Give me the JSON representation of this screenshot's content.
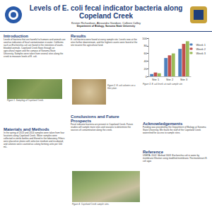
{
  "header": {
    "title": "Levels of E. coli fecal indicator bacteria along Copeland Creek",
    "authors": "Kirsten Richardson, Alexandra Vandiver, Colleen Colley",
    "affiliation": "Department of Biology, Sonoma State University"
  },
  "sections": [
    {
      "heading": "Introduction",
      "text": "Levels of bacteria that are harmful to humans and animals are used as indicators of fecal contamination in water. Coliforms such as Escherichia coli are found in the intestines of warm-blooded animals. Copeland Creek flows through an agricultural region and the campus of Sonoma State University. Samples were taken from several sites along the creek to measure levels of E. coli."
    },
    {
      "heading": "Results",
      "text": "E. coli bacteria were found at every sample site. Levels rose at the sites further downstream, and the highest counts were found at the site nearest the agricultural land."
    },
    {
      "heading": "Materials and Methods",
      "text": "In the spring of 2013 and 2014 samples were taken from four locations along Copeland Creek. Water samples were collected in sterile bottles and filtered in the laboratory. Filters were placed on plates with selective medium and incubated, and colonies were counted as colony forming units per 100 mL."
    },
    {
      "heading": "Conclusions and Future Prospects",
      "text": "Fecal indicator bacteria are present in Copeland Creek. Future studies will sample more sites and seasons to determine the sources of contamination along the creek."
    },
    {
      "heading": "Acknowledgements",
      "text": "Funding was provided by the Department of Biology at Sonoma State University. We thank the staff of the Copeland Creek watershed for access to sample sites."
    },
    {
      "heading": "Reference",
      "text": "USEPA. 2002. Method 1603: Escherichia coli in water by membrane filtration using modified membrane-Thermotolerant E. coli agar."
    }
  ],
  "figures": [
    "Figure 1. Sampling of Copeland Creek.",
    "Figure 2. E. coli colonies on a filter plate.",
    "Figure 3. E. coli levels at each sample site.",
    "Figure 4. Copeland Creek sample sites."
  ],
  "chart_data": {
    "type": "bar",
    "categories": [
      "Site 1",
      "Site 2",
      "Site 3"
    ],
    "series": [
      {
        "name": "Week 1",
        "color": "#4f81bd",
        "values": [
          6,
          48,
          72
        ]
      },
      {
        "name": "Week 2",
        "color": "#c0504d",
        "values": [
          10,
          55,
          85
        ]
      },
      {
        "name": "Week 3",
        "color": "#9bbb59",
        "values": [
          8,
          60,
          92
        ]
      }
    ],
    "ylim": [
      0,
      100
    ],
    "yticks": [
      0,
      20,
      40,
      60,
      80,
      100
    ],
    "legend": "right",
    "grid": false
  }
}
